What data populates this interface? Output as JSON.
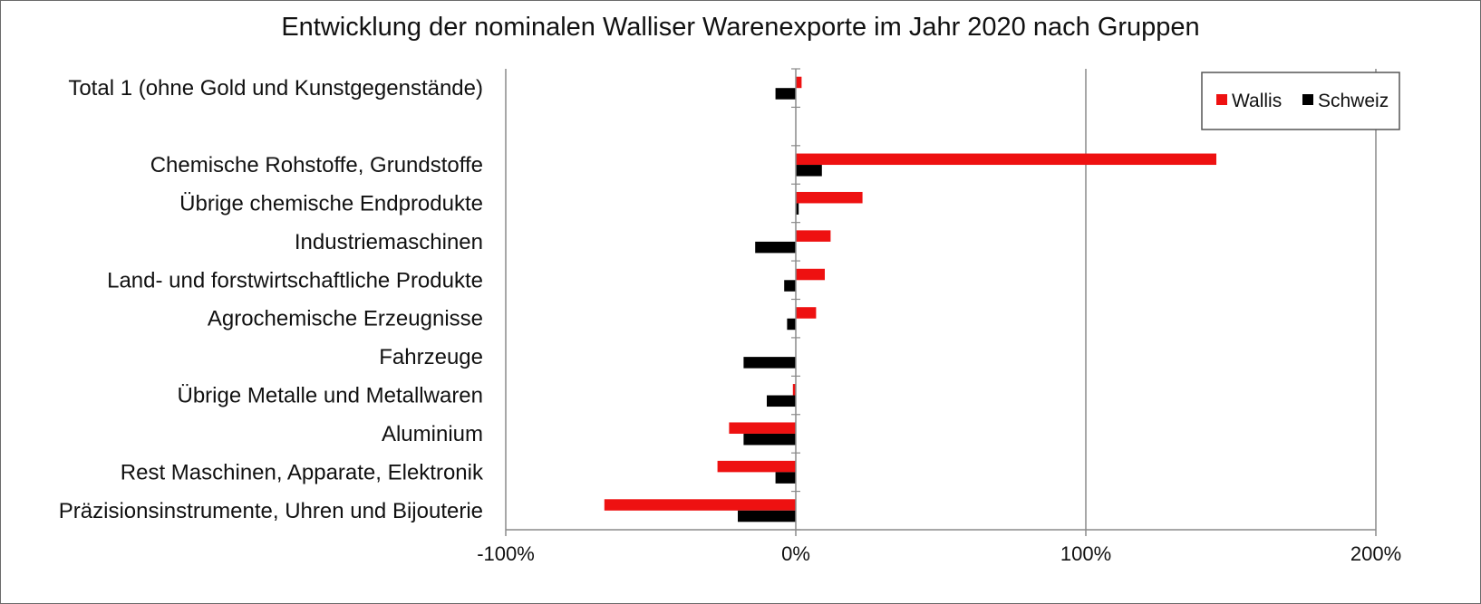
{
  "chart_data": {
    "type": "bar",
    "orientation": "horizontal",
    "title": "Entwicklung der nominalen Walliser Warenexporte im Jahr 2020 nach Gruppen",
    "categories": [
      "Total 1 (ohne Gold und Kunstgegenstände)",
      "",
      "Chemische Rohstoffe, Grundstoffe",
      "Übrige chemische Endprodukte",
      "Industriemaschinen",
      "Land- und forstwirtschaftliche Produkte",
      "Agrochemische Erzeugnisse",
      "Fahrzeuge",
      "Übrige Metalle und Metallwaren",
      "Aluminium",
      "Rest Maschinen, Apparate, Elektronik",
      "Präzisionsinstrumente, Uhren und Bijouterie"
    ],
    "series": [
      {
        "name": "Wallis",
        "color": "#ee1111",
        "values": [
          2,
          null,
          145,
          23,
          12,
          10,
          7,
          0,
          -1,
          -23,
          -27,
          -66
        ]
      },
      {
        "name": "Schweiz",
        "color": "#000000",
        "values": [
          -7,
          null,
          9,
          1,
          -14,
          -4,
          -3,
          -18,
          -10,
          -18,
          -7,
          -20
        ]
      }
    ],
    "xlim": [
      -100,
      200
    ],
    "xticks": [
      -100,
      0,
      100,
      200
    ],
    "xtick_labels": [
      "-100%",
      "0%",
      "100%",
      "200%"
    ],
    "grid": "vertical",
    "legend_position": "top-right"
  }
}
